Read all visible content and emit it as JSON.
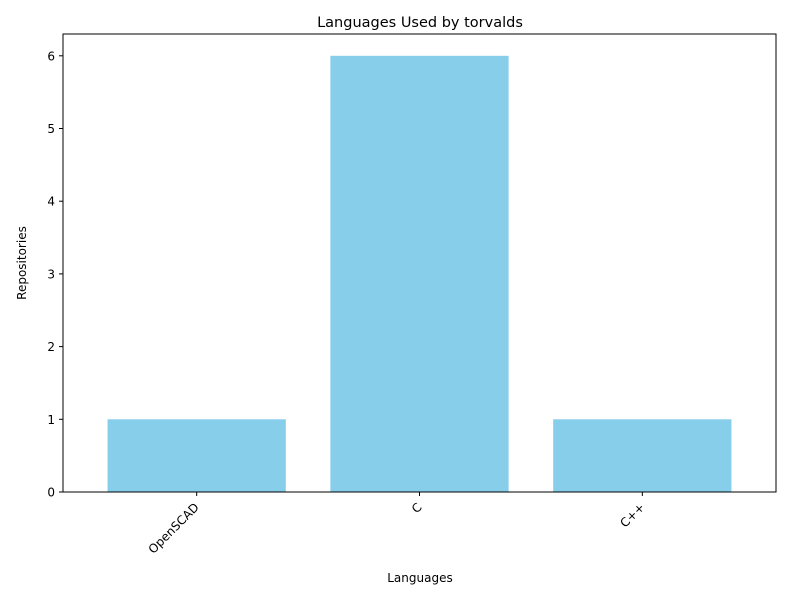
{
  "chart_data": {
    "type": "bar",
    "title": "Languages Used by torvalds",
    "xlabel": "Languages",
    "ylabel": "Repositories",
    "categories": [
      "OpenSCAD",
      "C",
      "C++"
    ],
    "values": [
      1,
      6,
      1
    ],
    "ylim": [
      0,
      6.3
    ],
    "yticks": [
      0,
      1,
      2,
      3,
      4,
      5,
      6
    ],
    "bar_color": "#87CEEB",
    "grid": false,
    "legend": "none",
    "xtick_rotation_deg": 45
  }
}
